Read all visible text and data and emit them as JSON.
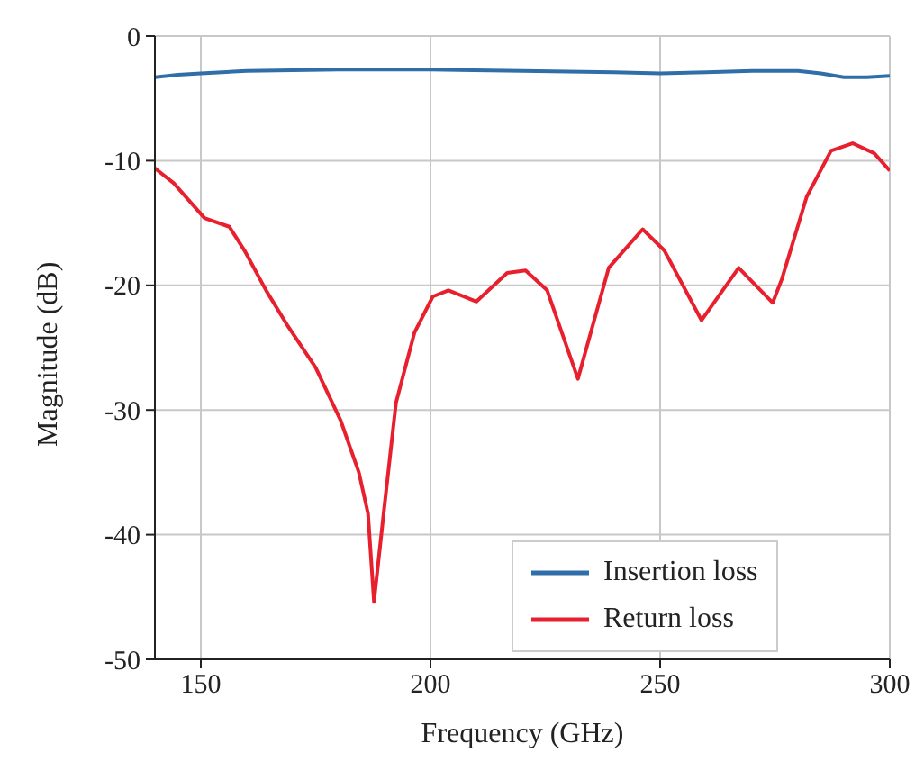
{
  "chart_data": {
    "type": "line",
    "xlabel": "Frequency (GHz)",
    "ylabel": "Magnitude (dB)",
    "xlim": [
      140,
      300
    ],
    "xticks": [
      150,
      200,
      250,
      300
    ],
    "ylim": [
      -50,
      0
    ],
    "yticks": [
      -50,
      -40,
      -30,
      -20,
      -10,
      0
    ],
    "grid": true,
    "legend": "bottom right",
    "marker": "none",
    "line_style": "solid",
    "series": [
      {
        "name": "Insertion loss",
        "color": "#2f6ea8",
        "x": [
          140,
          145,
          150,
          160,
          180,
          200,
          220,
          240,
          250,
          260,
          270,
          280,
          285,
          290,
          295,
          300
        ],
        "values": [
          -3.3,
          -3.1,
          -3.0,
          -2.8,
          -2.7,
          -2.7,
          -2.8,
          -2.9,
          -3.0,
          -2.9,
          -2.8,
          -2.8,
          -3.0,
          -3.3,
          -3.3,
          -3.2
        ]
      },
      {
        "name": "Return loss",
        "color": "#e8202e",
        "x": [
          140,
          144.1,
          150.8,
          156.2,
          159.5,
          164.2,
          169,
          175,
          180.4,
          184.4,
          186.4,
          187.7,
          189.8,
          192.5,
          196.5,
          200.5,
          203.9,
          210,
          216.7,
          220.7,
          225.4,
          232.1,
          238.8,
          246.2,
          250.9,
          259,
          267.1,
          274.5,
          276.5,
          281.9,
          287.2,
          291.9,
          296.6,
          300
        ],
        "values": [
          -10.6,
          -11.8,
          -14.6,
          -15.3,
          -17.2,
          -20.4,
          -23.3,
          -26.6,
          -30.8,
          -35.0,
          -38.3,
          -45.4,
          -38.3,
          -29.4,
          -23.8,
          -20.9,
          -20.4,
          -21.3,
          -19.0,
          -18.8,
          -20.4,
          -27.5,
          -18.6,
          -15.5,
          -17.2,
          -22.8,
          -18.6,
          -21.4,
          -19.5,
          -12.9,
          -9.2,
          -8.6,
          -9.4,
          -10.8
        ]
      }
    ]
  }
}
